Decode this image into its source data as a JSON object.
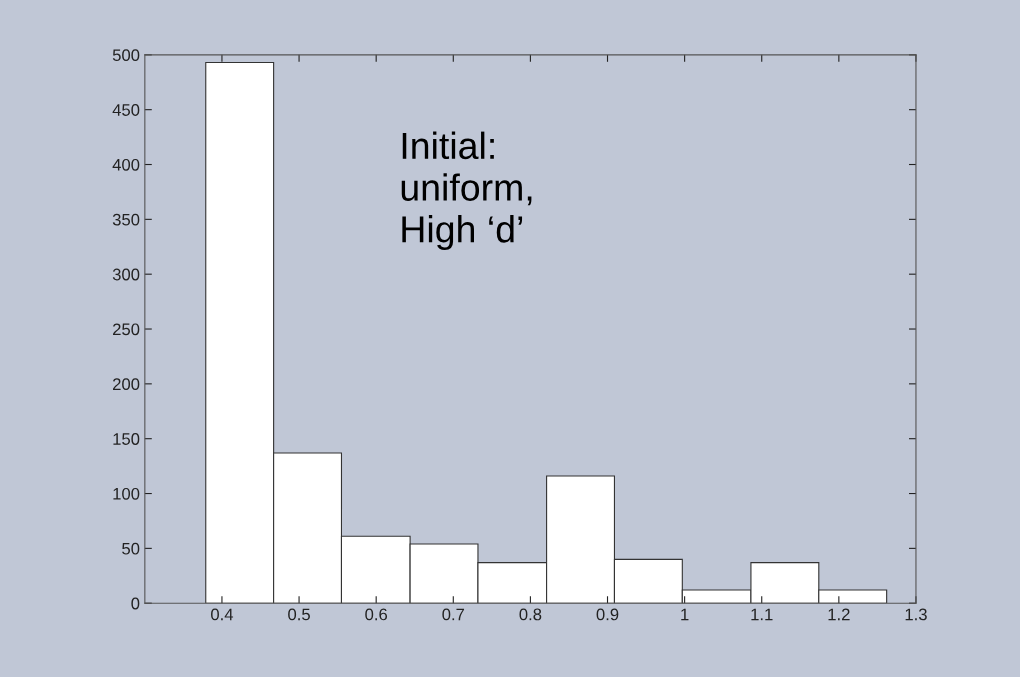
{
  "chart_data": {
    "type": "histogram",
    "bins": [
      0.379,
      0.467,
      0.555,
      0.644,
      0.732,
      0.821,
      0.909,
      0.997,
      1.086,
      1.174,
      1.262
    ],
    "values": [
      493,
      137,
      61,
      54,
      37,
      116,
      40,
      12,
      37,
      12
    ],
    "color": "#ffffff",
    "xlim": [
      0.3,
      1.3
    ],
    "xticks": [
      0.4,
      0.5,
      0.6,
      0.7,
      0.8,
      0.9,
      1,
      1.1,
      1.2,
      1.3
    ],
    "ylim": [
      0,
      500
    ],
    "yticks": [
      0,
      50,
      100,
      150,
      200,
      250,
      300,
      350,
      400,
      450,
      500
    ],
    "annotations": [
      "Initial:\nuniform,\nHigh ‘d’"
    ],
    "grid": false,
    "legend": false
  }
}
